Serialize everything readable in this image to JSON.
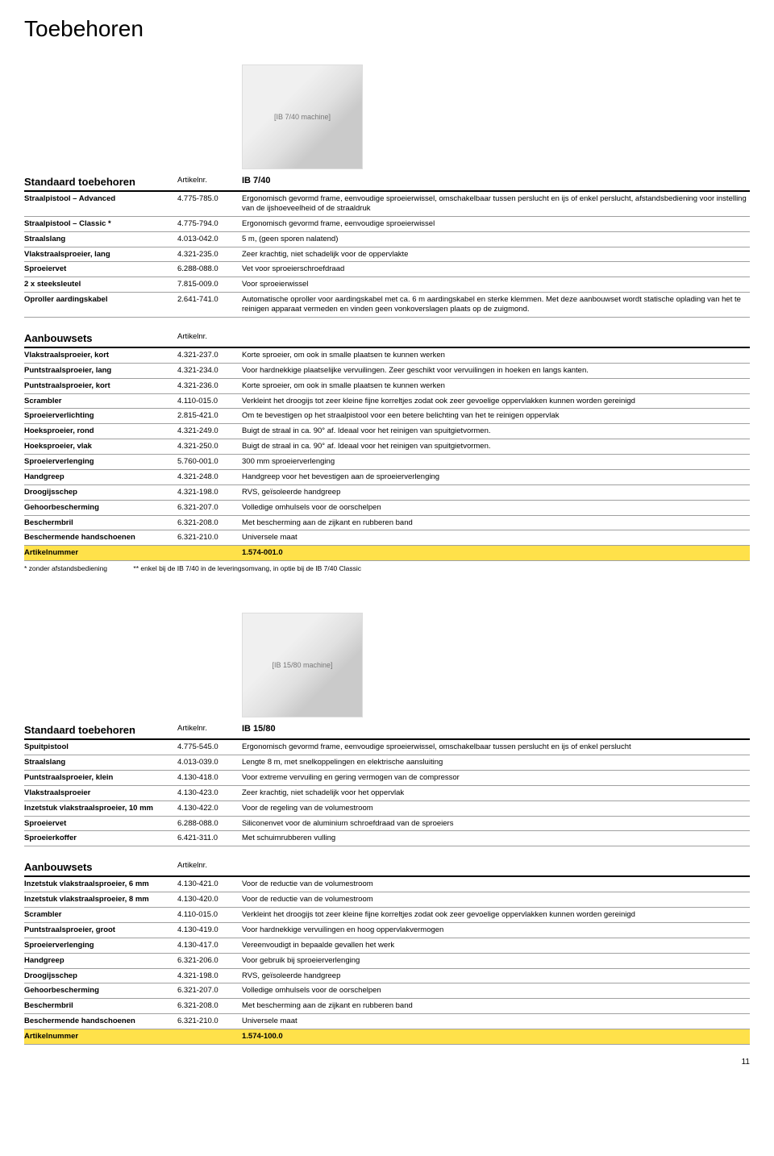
{
  "colors": {
    "text": "#000000",
    "background": "#ffffff",
    "row_border": "#a0a0a0",
    "highlight_bg": "#ffe14a"
  },
  "page_title": "Toebehoren",
  "page_number": "11",
  "labels": {
    "artikelnr": "Artikelnr.",
    "std_toebehoren": "Standaard toebehoren",
    "aanbouwsets": "Aanbouwsets",
    "artikelnummer": "Artikelnummer"
  },
  "footnotes": {
    "a": "* zonder afstandsbediening",
    "b": "** enkel bij de IB 7/40 in de leveringsomvang, in optie bij de IB 7/40 Classic"
  },
  "products": [
    {
      "model": "IB 7/40",
      "img_alt": "[IB 7/40 machine]",
      "standard": [
        {
          "name": "Straalpistool – Advanced",
          "art": "4.775-785.0",
          "desc": "Ergonomisch gevormd frame, eenvoudige sproeierwissel, omschakelbaar tussen perslucht en ijs of enkel perslucht, afstandsbediening voor instelling van de ijshoeveelheid of de straaldruk"
        },
        {
          "name": "Straalpistool – Classic *",
          "art": "4.775-794.0",
          "desc": "Ergonomisch gevormd frame, eenvoudige sproeierwissel"
        },
        {
          "name": "Straalslang",
          "art": "4.013-042.0",
          "desc": "5 m, (geen sporen nalatend)"
        },
        {
          "name": "Vlakstraalsproeier, lang",
          "art": "4.321-235.0",
          "desc": "Zeer krachtig, niet schadelijk voor de oppervlakte"
        },
        {
          "name": "Sproeiervet",
          "art": "6.288-088.0",
          "desc": "Vet voor sproeierschroefdraad"
        },
        {
          "name": "2 x steeksleutel",
          "art": "7.815-009.0",
          "desc": "Voor sproeierwissel"
        },
        {
          "name": "Oproller aardingskabel",
          "art": "2.641-741.0",
          "desc": "Automatische oproller voor aardingskabel met ca. 6 m aardingskabel en sterke klemmen. Met deze aanbouwset wordt statische oplading van het te reinigen apparaat vermeden en vinden geen vonkoverslagen plaats op de zuigmond."
        }
      ],
      "aanbouw": [
        {
          "name": "Vlakstraalsproeier, kort",
          "art": "4.321-237.0",
          "desc": "Korte sproeier, om ook in smalle plaatsen te kunnen werken"
        },
        {
          "name": "Puntstraalsproeier, lang",
          "art": "4.321-234.0",
          "desc": "Voor hardnekkige plaatselijke vervuilingen. Zeer geschikt voor vervuilingen in hoeken en langs kanten."
        },
        {
          "name": "Puntstraalsproeier, kort",
          "art": "4.321-236.0",
          "desc": "Korte sproeier, om ook in smalle plaatsen te kunnen werken"
        },
        {
          "name": "Scrambler",
          "art": "4.110-015.0",
          "desc": "Verkleint het droogijs tot zeer kleine fijne korreltjes zodat ook zeer gevoelige oppervlakken kunnen worden gereinigd"
        },
        {
          "name": "Sproeierverlichting",
          "art": "2.815-421.0",
          "desc": "Om te bevestigen op het straalpistool voor een betere belichting van het te reinigen oppervlak"
        },
        {
          "name": "Hoeksproeier, rond",
          "art": "4.321-249.0",
          "desc": "Buigt de straal in ca. 90° af. Ideaal voor het reinigen van spuitgietvormen."
        },
        {
          "name": "Hoeksproeier, vlak",
          "art": "4.321-250.0",
          "desc": "Buigt de straal in ca. 90° af. Ideaal voor het reinigen van spuitgietvormen."
        },
        {
          "name": "Sproeierverlenging",
          "art": "5.760-001.0",
          "desc": "300 mm sproeierverlenging"
        },
        {
          "name": "Handgreep",
          "art": "4.321-248.0",
          "desc": "Handgreep voor het bevestigen aan de sproeierverlenging"
        },
        {
          "name": "Droogijsschep",
          "art": "4.321-198.0",
          "desc": "RVS, geïsoleerde handgreep"
        },
        {
          "name": "Gehoorbescherming",
          "art": "6.321-207.0",
          "desc": "Volledige omhulsels voor de oorschelpen"
        },
        {
          "name": "Beschermbril",
          "art": "6.321-208.0",
          "desc": "Met bescherming aan de zijkant en rubberen band"
        },
        {
          "name": "Beschermende handschoenen",
          "art": "6.321-210.0",
          "desc": "Universele maat"
        }
      ],
      "product_artnr": "1.574-001.0"
    },
    {
      "model": "IB 15/80",
      "img_alt": "[IB 15/80 machine]",
      "standard": [
        {
          "name": "Spuitpistool",
          "art": "4.775-545.0",
          "desc": "Ergonomisch gevormd frame, eenvoudige sproeierwissel, omschakelbaar tussen perslucht en ijs of enkel perslucht"
        },
        {
          "name": "Straalslang",
          "art": "4.013-039.0",
          "desc": "Lengte 8 m, met snelkoppelingen en elektrische aansluiting"
        },
        {
          "name": "Puntstraalsproeier, klein",
          "art": "4.130-418.0",
          "desc": "Voor extreme vervuiling en gering vermogen van de compressor"
        },
        {
          "name": "Vlakstraalsproeier",
          "art": "4.130-423.0",
          "desc": "Zeer krachtig, niet schadelijk voor het oppervlak"
        },
        {
          "name": "Inzetstuk vlakstraalsproeier, 10 mm",
          "art": "4.130-422.0",
          "desc": "Voor de regeling van de volumestroom"
        },
        {
          "name": "Sproeiervet",
          "art": "6.288-088.0",
          "desc": "Siliconenvet voor de aluminium schroefdraad van de sproeiers"
        },
        {
          "name": "Sproeierkoffer",
          "art": "6.421-311.0",
          "desc": "Met schuimrubberen vulling"
        }
      ],
      "aanbouw": [
        {
          "name": "Inzetstuk vlakstraalsproeier, 6 mm",
          "art": "4.130-421.0",
          "desc": "Voor de reductie van de volumestroom"
        },
        {
          "name": "Inzetstuk vlakstraalsproeier, 8 mm",
          "art": "4.130-420.0",
          "desc": "Voor de reductie van de volumestroom"
        },
        {
          "name": "Scrambler",
          "art": "4.110-015.0",
          "desc": "Verkleint het droogijs tot zeer kleine fijne korreltjes zodat ook zeer gevoelige oppervlakken kunnen worden gereinigd"
        },
        {
          "name": "Puntstraalsproeier, groot",
          "art": "4.130-419.0",
          "desc": "Voor hardnekkige vervuilingen en hoog oppervlakvermogen"
        },
        {
          "name": "Sproeierverlenging",
          "art": "4.130-417.0",
          "desc": "Vereenvoudigt in bepaalde gevallen het werk"
        },
        {
          "name": "Handgreep",
          "art": "6.321-206.0",
          "desc": "Voor gebruik bij sproeierverlenging"
        },
        {
          "name": "Droogijsschep",
          "art": "4.321-198.0",
          "desc": "RVS, geïsoleerde handgreep"
        },
        {
          "name": "Gehoorbescherming",
          "art": "6.321-207.0",
          "desc": "Volledige omhulsels voor de oorschelpen"
        },
        {
          "name": "Beschermbril",
          "art": "6.321-208.0",
          "desc": "Met bescherming aan de zijkant en rubberen band"
        },
        {
          "name": "Beschermende handschoenen",
          "art": "6.321-210.0",
          "desc": "Universele maat"
        }
      ],
      "product_artnr": "1.574-100.0"
    }
  ]
}
